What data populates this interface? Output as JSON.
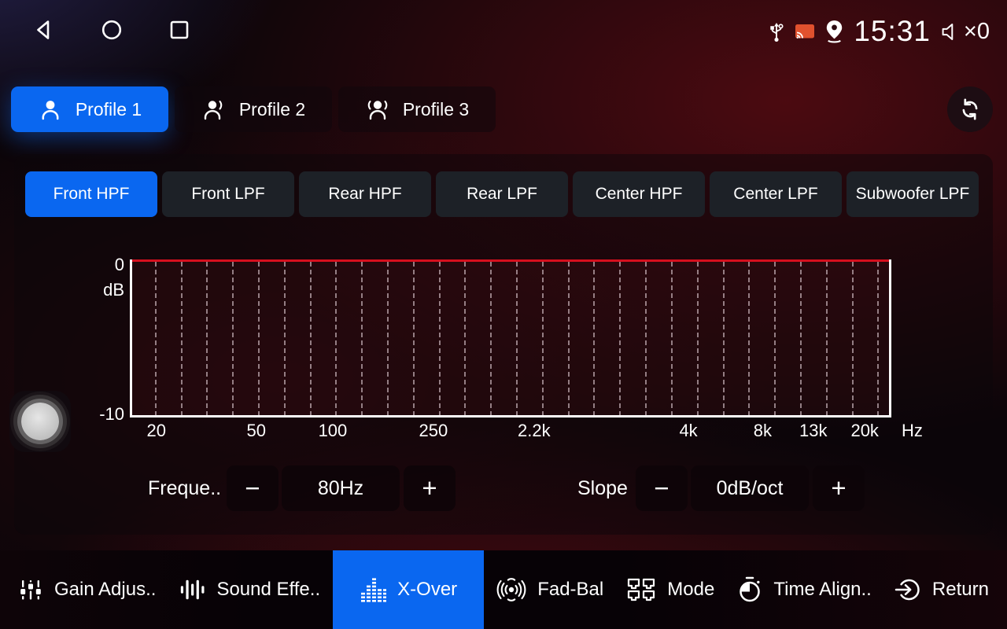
{
  "status_bar": {
    "time": "15:31",
    "volume_text": "×0",
    "icons": [
      "back-icon",
      "home-icon",
      "recents-icon",
      "usb-icon",
      "cast-icon",
      "location-icon",
      "volume-muted-icon"
    ]
  },
  "profiles": {
    "items": [
      {
        "label": "Profile 1",
        "active": true
      },
      {
        "label": "Profile 2",
        "active": false
      },
      {
        "label": "Profile 3",
        "active": false
      }
    ]
  },
  "filter_tabs": {
    "items": [
      {
        "label": "Front HPF",
        "active": true
      },
      {
        "label": "Front LPF",
        "active": false
      },
      {
        "label": "Rear HPF",
        "active": false
      },
      {
        "label": "Rear LPF",
        "active": false
      },
      {
        "label": "Center HPF",
        "active": false
      },
      {
        "label": "Center LPF",
        "active": false
      },
      {
        "label": "Subwoofer LPF",
        "active": false
      }
    ]
  },
  "chart_data": {
    "type": "line",
    "title": "",
    "ylabel": "dB",
    "x_unit_label": "Hz",
    "x_scale": "log",
    "ylim": [
      -10,
      0
    ],
    "y_tick_labels": [
      "0",
      "-10"
    ],
    "x_tick_labels": [
      "20",
      "50",
      "100",
      "250",
      "2.2k",
      "4k",
      "8k",
      "13k",
      "20k"
    ],
    "x_tick_pos_pct": [
      3.2,
      16.4,
      26.5,
      39.8,
      53.1,
      73.5,
      83.3,
      90.0,
      96.8
    ],
    "grid": {
      "style": "dashed-vertical",
      "count": 29,
      "first_pct": 3.1,
      "step_pct": 3.41
    },
    "series": [
      {
        "name": "crossover-response",
        "color": "#d60f1e",
        "points": [
          {
            "x": "20",
            "y": 0
          },
          {
            "x": "20k",
            "y": 0
          }
        ],
        "note": "flat line at 0 dB (slope 0dB/oct)"
      }
    ],
    "legend": false
  },
  "controls": {
    "frequency": {
      "label": "Freque..",
      "minus_label": "−",
      "value": "80Hz",
      "plus_label": "+"
    },
    "slope": {
      "label": "Slope",
      "minus_label": "−",
      "value": "0dB/oct",
      "plus_label": "+"
    }
  },
  "bottom_nav": {
    "items": [
      {
        "label": "Gain Adjus..",
        "icon": "gain-adjust-icon",
        "active": false
      },
      {
        "label": "Sound Effe..",
        "icon": "sound-effects-icon",
        "active": false
      },
      {
        "label": "X-Over",
        "icon": "crossover-equalizer-icon",
        "active": true
      },
      {
        "label": "Fad-Bal",
        "icon": "fader-balance-icon",
        "active": false
      },
      {
        "label": "Mode",
        "icon": "mode-icon",
        "active": false
      },
      {
        "label": "Time Align..",
        "icon": "time-alignment-icon",
        "active": false
      },
      {
        "label": "Return",
        "icon": "return-icon",
        "active": false
      }
    ]
  },
  "colors": {
    "accent_blue": "#0a67f0",
    "curve_red": "#d60f1e",
    "cast_orange": "#e0512e",
    "tab_inactive": "#1d2127"
  }
}
